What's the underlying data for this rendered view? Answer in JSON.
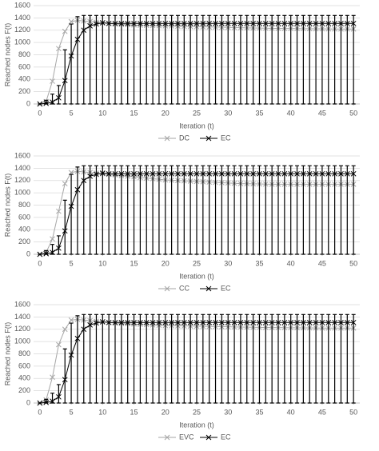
{
  "chart_data": [
    {
      "type": "line",
      "xlabel": "Iteration (t)",
      "ylabel": "Reached nodes F(t)",
      "x": [
        0,
        1,
        2,
        3,
        4,
        5,
        6,
        7,
        8,
        9,
        10,
        11,
        12,
        13,
        14,
        15,
        16,
        17,
        18,
        19,
        20,
        21,
        22,
        23,
        24,
        25,
        26,
        27,
        28,
        29,
        30,
        31,
        32,
        33,
        34,
        35,
        36,
        37,
        38,
        39,
        40,
        41,
        42,
        43,
        44,
        45,
        46,
        47,
        48,
        49,
        50
      ],
      "xlim": [
        -1,
        51
      ],
      "ylim": [
        0,
        1600
      ],
      "xticks": [
        0,
        5,
        10,
        15,
        20,
        25,
        30,
        35,
        40,
        45,
        50
      ],
      "yticks": [
        0,
        200,
        400,
        600,
        800,
        1000,
        1200,
        1400,
        1600
      ],
      "grid": true,
      "series": [
        {
          "name": "DC",
          "color": "#a6a6a6",
          "values": [
            0,
            40,
            370,
            900,
            1180,
            1340,
            1360,
            1350,
            1340,
            1330,
            1320,
            1310,
            1300,
            1295,
            1290,
            1285,
            1280,
            1278,
            1275,
            1272,
            1270,
            1268,
            1265,
            1262,
            1260,
            1258,
            1255,
            1252,
            1250,
            1248,
            1245,
            1243,
            1240,
            1238,
            1236,
            1234,
            1232,
            1230,
            1229,
            1228,
            1227,
            1226,
            1225,
            1224,
            1223,
            1222,
            1221,
            1220,
            1220,
            1220,
            1220
          ]
        },
        {
          "name": "EC",
          "color": "#000000",
          "values": [
            0,
            10,
            30,
            100,
            380,
            780,
            1050,
            1200,
            1270,
            1300,
            1320,
            1310,
            1310,
            1310,
            1310,
            1310,
            1310,
            1310,
            1310,
            1310,
            1310,
            1310,
            1310,
            1310,
            1310,
            1310,
            1310,
            1310,
            1310,
            1310,
            1310,
            1310,
            1310,
            1310,
            1310,
            1310,
            1310,
            1310,
            1310,
            1310,
            1310,
            1310,
            1310,
            1310,
            1310,
            1310,
            1310,
            1310,
            1310,
            1310,
            1310
          ],
          "low": [
            0,
            0,
            0,
            0,
            0,
            0,
            0,
            0,
            0,
            0,
            0,
            0,
            0,
            0,
            0,
            0,
            0,
            0,
            0,
            0,
            0,
            0,
            0,
            0,
            0,
            0,
            0,
            0,
            0,
            0,
            0,
            0,
            0,
            0,
            0,
            0,
            0,
            0,
            0,
            0,
            0,
            0,
            0,
            0,
            0,
            0,
            0,
            0,
            0,
            0,
            0
          ],
          "high": [
            0,
            60,
            160,
            300,
            880,
            1300,
            1420,
            1440,
            1440,
            1440,
            1440,
            1440,
            1440,
            1440,
            1440,
            1440,
            1440,
            1440,
            1440,
            1440,
            1440,
            1440,
            1440,
            1440,
            1440,
            1440,
            1440,
            1440,
            1440,
            1440,
            1440,
            1440,
            1440,
            1440,
            1440,
            1440,
            1440,
            1440,
            1440,
            1440,
            1440,
            1440,
            1440,
            1440,
            1440,
            1440,
            1440,
            1440,
            1440,
            1440,
            1440
          ]
        }
      ]
    },
    {
      "type": "line",
      "xlabel": "Iteration (t)",
      "ylabel": "Reached nodes F(t)",
      "x": [
        0,
        1,
        2,
        3,
        4,
        5,
        6,
        7,
        8,
        9,
        10,
        11,
        12,
        13,
        14,
        15,
        16,
        17,
        18,
        19,
        20,
        21,
        22,
        23,
        24,
        25,
        26,
        27,
        28,
        29,
        30,
        31,
        32,
        33,
        34,
        35,
        36,
        37,
        38,
        39,
        40,
        41,
        42,
        43,
        44,
        45,
        46,
        47,
        48,
        49,
        50
      ],
      "xlim": [
        -1,
        51
      ],
      "ylim": [
        0,
        1600
      ],
      "xticks": [
        0,
        5,
        10,
        15,
        20,
        25,
        30,
        35,
        40,
        45,
        50
      ],
      "yticks": [
        0,
        200,
        400,
        600,
        800,
        1000,
        1200,
        1400,
        1600
      ],
      "grid": true,
      "series": [
        {
          "name": "CC",
          "color": "#a6a6a6",
          "values": [
            0,
            30,
            250,
            700,
            1150,
            1330,
            1350,
            1340,
            1330,
            1320,
            1310,
            1300,
            1290,
            1280,
            1270,
            1260,
            1250,
            1240,
            1230,
            1220,
            1210,
            1205,
            1200,
            1195,
            1190,
            1185,
            1180,
            1175,
            1170,
            1165,
            1160,
            1155,
            1150,
            1148,
            1146,
            1144,
            1142,
            1140,
            1140,
            1140,
            1140,
            1140,
            1140,
            1140,
            1140,
            1140,
            1140,
            1140,
            1140,
            1140,
            1140
          ]
        },
        {
          "name": "EC",
          "color": "#000000",
          "values": [
            0,
            10,
            30,
            100,
            380,
            780,
            1050,
            1200,
            1270,
            1300,
            1320,
            1310,
            1310,
            1310,
            1310,
            1310,
            1310,
            1310,
            1310,
            1310,
            1310,
            1310,
            1310,
            1310,
            1310,
            1310,
            1310,
            1310,
            1310,
            1310,
            1310,
            1310,
            1310,
            1310,
            1310,
            1310,
            1310,
            1310,
            1310,
            1310,
            1310,
            1310,
            1310,
            1310,
            1310,
            1310,
            1310,
            1310,
            1310,
            1310,
            1310
          ],
          "low": [
            0,
            0,
            0,
            0,
            0,
            0,
            0,
            0,
            0,
            0,
            0,
            0,
            0,
            0,
            0,
            0,
            0,
            0,
            0,
            0,
            0,
            0,
            0,
            0,
            0,
            0,
            0,
            0,
            0,
            0,
            0,
            0,
            0,
            0,
            0,
            0,
            0,
            0,
            0,
            0,
            0,
            0,
            0,
            0,
            0,
            0,
            0,
            0,
            0,
            0,
            0
          ],
          "high": [
            0,
            60,
            160,
            300,
            880,
            1300,
            1420,
            1440,
            1440,
            1440,
            1440,
            1440,
            1440,
            1440,
            1440,
            1440,
            1440,
            1440,
            1440,
            1440,
            1440,
            1440,
            1440,
            1440,
            1440,
            1440,
            1440,
            1440,
            1440,
            1440,
            1440,
            1440,
            1440,
            1440,
            1440,
            1440,
            1440,
            1440,
            1440,
            1440,
            1440,
            1440,
            1440,
            1440,
            1440,
            1440,
            1440,
            1440,
            1440,
            1440,
            1440
          ]
        }
      ]
    },
    {
      "type": "line",
      "xlabel": "Iteration (t)",
      "ylabel": "Reached nodes F(t)",
      "x": [
        0,
        1,
        2,
        3,
        4,
        5,
        6,
        7,
        8,
        9,
        10,
        11,
        12,
        13,
        14,
        15,
        16,
        17,
        18,
        19,
        20,
        21,
        22,
        23,
        24,
        25,
        26,
        27,
        28,
        29,
        30,
        31,
        32,
        33,
        34,
        35,
        36,
        37,
        38,
        39,
        40,
        41,
        42,
        43,
        44,
        45,
        46,
        47,
        48,
        49,
        50
      ],
      "xlim": [
        -1,
        51
      ],
      "ylim": [
        0,
        1600
      ],
      "xticks": [
        0,
        5,
        10,
        15,
        20,
        25,
        30,
        35,
        40,
        45,
        50
      ],
      "yticks": [
        0,
        200,
        400,
        600,
        800,
        1000,
        1200,
        1400,
        1600
      ],
      "grid": true,
      "series": [
        {
          "name": "EVC",
          "color": "#a6a6a6",
          "values": [
            0,
            50,
            420,
            950,
            1200,
            1350,
            1360,
            1350,
            1340,
            1330,
            1320,
            1310,
            1300,
            1295,
            1290,
            1285,
            1280,
            1275,
            1270,
            1265,
            1260,
            1258,
            1256,
            1254,
            1252,
            1250,
            1248,
            1246,
            1244,
            1242,
            1240,
            1238,
            1236,
            1234,
            1232,
            1230,
            1229,
            1228,
            1227,
            1226,
            1225,
            1224,
            1223,
            1222,
            1221,
            1220,
            1220,
            1220,
            1220,
            1220,
            1220
          ]
        },
        {
          "name": "EC",
          "color": "#000000",
          "values": [
            0,
            10,
            30,
            100,
            380,
            780,
            1050,
            1200,
            1270,
            1300,
            1320,
            1310,
            1310,
            1310,
            1310,
            1310,
            1310,
            1310,
            1310,
            1310,
            1310,
            1310,
            1310,
            1310,
            1310,
            1310,
            1310,
            1310,
            1310,
            1310,
            1310,
            1310,
            1310,
            1310,
            1310,
            1310,
            1310,
            1310,
            1310,
            1310,
            1310,
            1310,
            1310,
            1310,
            1310,
            1310,
            1310,
            1310,
            1310,
            1310,
            1310
          ],
          "low": [
            0,
            0,
            0,
            0,
            0,
            0,
            0,
            0,
            0,
            0,
            0,
            0,
            0,
            0,
            0,
            0,
            0,
            0,
            0,
            0,
            0,
            0,
            0,
            0,
            0,
            0,
            0,
            0,
            0,
            0,
            0,
            0,
            0,
            0,
            0,
            0,
            0,
            0,
            0,
            0,
            0,
            0,
            0,
            0,
            0,
            0,
            0,
            0,
            0,
            0,
            0
          ],
          "high": [
            0,
            60,
            160,
            300,
            880,
            1300,
            1420,
            1440,
            1440,
            1440,
            1440,
            1440,
            1440,
            1440,
            1440,
            1440,
            1440,
            1440,
            1440,
            1440,
            1440,
            1440,
            1440,
            1440,
            1440,
            1440,
            1440,
            1440,
            1440,
            1440,
            1440,
            1440,
            1440,
            1440,
            1440,
            1440,
            1440,
            1440,
            1440,
            1440,
            1440,
            1440,
            1440,
            1440,
            1440,
            1440,
            1440,
            1440,
            1440,
            1440,
            1440
          ]
        }
      ]
    }
  ]
}
